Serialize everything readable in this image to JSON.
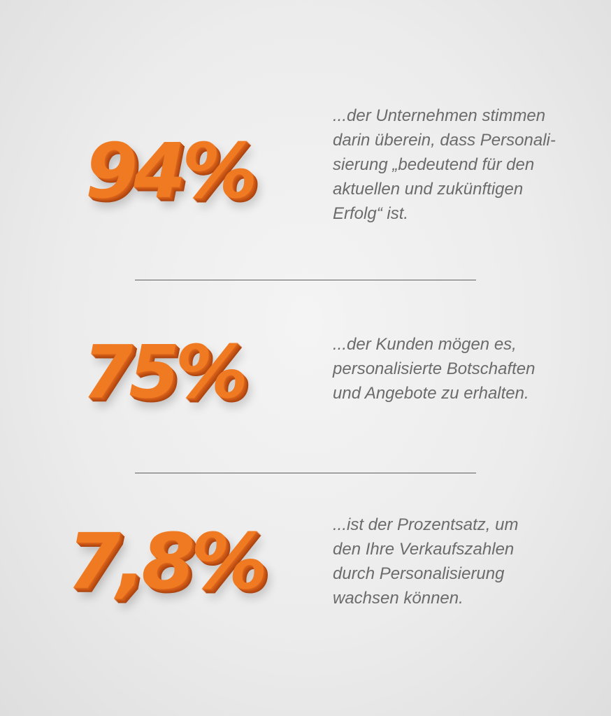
{
  "stats": [
    {
      "value": "94%",
      "lines": [
        "...der Unternehmen stimmen",
        "darin überein, dass Personali-",
        "sierung „bedeutend für den",
        "aktuellen und zukünftigen",
        "Erfolg“ ist."
      ]
    },
    {
      "value": "75%",
      "lines": [
        "...der Kunden mögen es,",
        "personalisierte Botschaften",
        "und Angebote zu erhalten."
      ]
    },
    {
      "value": "7,8%",
      "lines": [
        "...ist der Prozentsatz, um",
        "den Ihre Verkaufszahlen",
        "durch Personalisierung",
        "wachsen können."
      ]
    }
  ],
  "colors": {
    "accent": "#f07a22",
    "text": "#6b6b6b",
    "divider": "#5e5e5e",
    "background": "#ececec"
  }
}
